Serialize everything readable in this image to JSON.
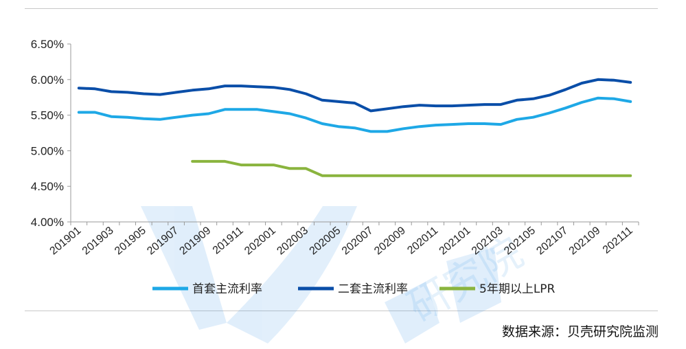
{
  "chart_data": {
    "type": "line",
    "title": "",
    "xlabel": "",
    "ylabel": "",
    "ylim": [
      0.04,
      0.065
    ],
    "y_ticks": [
      "4.00%",
      "4.50%",
      "5.00%",
      "5.50%",
      "6.00%",
      "6.50%"
    ],
    "y_tick_values": [
      0.04,
      0.045,
      0.05,
      0.055,
      0.06,
      0.065
    ],
    "x": [
      "201901",
      "201902",
      "201903",
      "201904",
      "201905",
      "201906",
      "201907",
      "201908",
      "201909",
      "201910",
      "201911",
      "201912",
      "202001",
      "202002",
      "202003",
      "202004",
      "202005",
      "202006",
      "202007",
      "202008",
      "202009",
      "202010",
      "202011",
      "202012",
      "202101",
      "202102",
      "202103",
      "202104",
      "202105",
      "202106",
      "202107",
      "202108",
      "202109",
      "202110",
      "202111"
    ],
    "x_tick_labels": [
      "201901",
      "201903",
      "201905",
      "201907",
      "201909",
      "201911",
      "202001",
      "202003",
      "202005",
      "202007",
      "202009",
      "202011",
      "202101",
      "202103",
      "202105",
      "202107",
      "202109",
      "202111"
    ],
    "legend_position": "bottom",
    "grid": false,
    "series": [
      {
        "name": "首套主流利率",
        "color": "#1ea8e6",
        "values": [
          0.0554,
          0.0554,
          0.0548,
          0.0547,
          0.0545,
          0.0544,
          0.0547,
          0.055,
          0.0552,
          0.0558,
          0.0558,
          0.0558,
          0.0555,
          0.0552,
          0.0546,
          0.0538,
          0.0534,
          0.0532,
          0.0527,
          0.0527,
          0.0531,
          0.0534,
          0.0536,
          0.0537,
          0.0538,
          0.0538,
          0.0537,
          0.0544,
          0.0547,
          0.0553,
          0.056,
          0.0568,
          0.0574,
          0.0573,
          0.0569
        ]
      },
      {
        "name": "二套主流利率",
        "color": "#0a4ea8",
        "values": [
          0.0588,
          0.0587,
          0.0583,
          0.0582,
          0.058,
          0.0579,
          0.0582,
          0.0585,
          0.0587,
          0.0591,
          0.0591,
          0.059,
          0.0589,
          0.0586,
          0.058,
          0.0571,
          0.0569,
          0.0567,
          0.0556,
          0.0559,
          0.0562,
          0.0564,
          0.0563,
          0.0563,
          0.0564,
          0.0565,
          0.0565,
          0.0571,
          0.0573,
          0.0578,
          0.0586,
          0.0595,
          0.06,
          0.0599,
          0.0596
        ]
      },
      {
        "name": "5年期以上LPR",
        "color": "#8ab43e",
        "values": [
          null,
          null,
          null,
          null,
          null,
          null,
          null,
          0.0485,
          0.0485,
          0.0485,
          0.048,
          0.048,
          0.048,
          0.0475,
          0.0475,
          0.0465,
          0.0465,
          0.0465,
          0.0465,
          0.0465,
          0.0465,
          0.0465,
          0.0465,
          0.0465,
          0.0465,
          0.0465,
          0.0465,
          0.0465,
          0.0465,
          0.0465,
          0.0465,
          0.0465,
          0.0465,
          0.0465,
          0.0465
        ]
      }
    ]
  },
  "source_note": "数据来源：贝壳研究院监测",
  "watermark": {
    "color": "#2f8fe6",
    "text": "研究院"
  }
}
